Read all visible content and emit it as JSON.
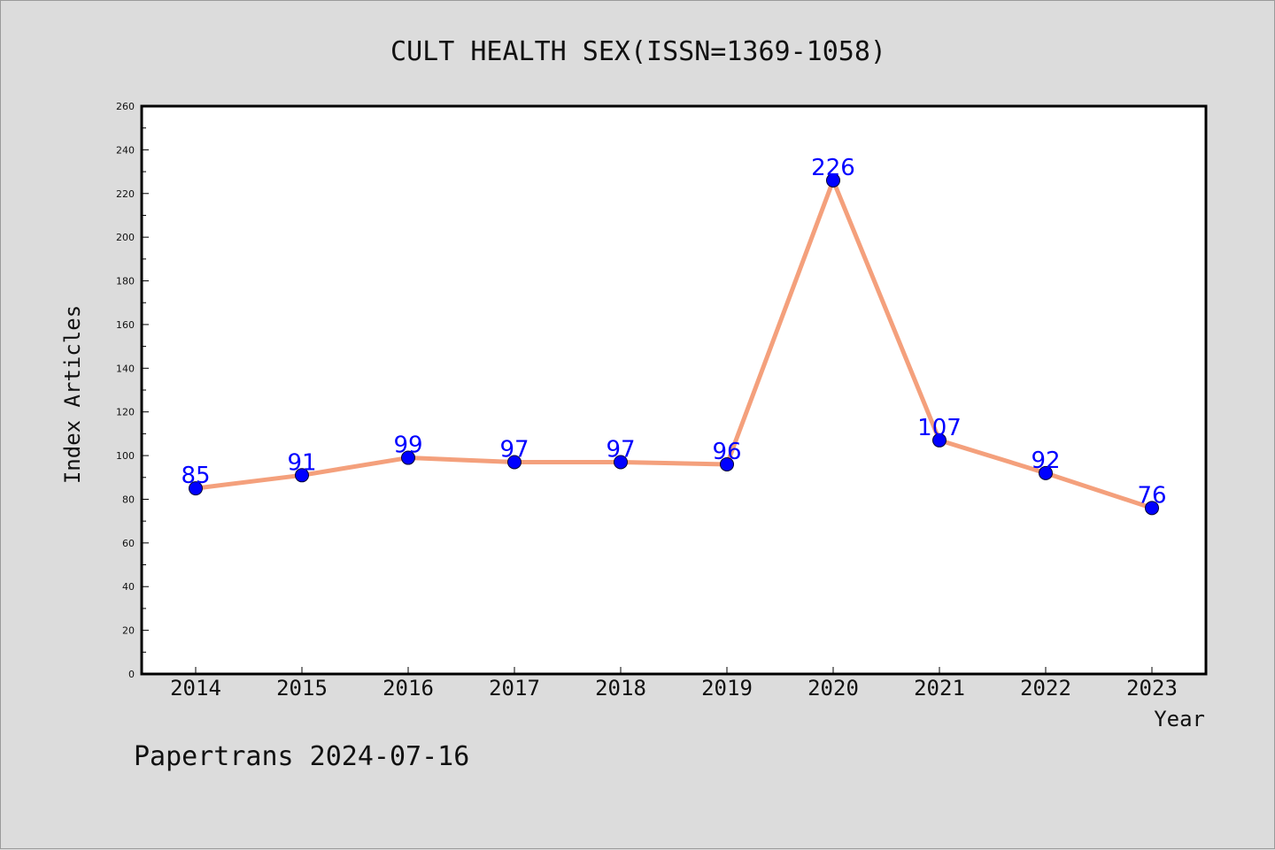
{
  "chart_data": {
    "type": "line",
    "title": "CULT HEALTH SEX(ISSN=1369-1058)",
    "xlabel": "Year",
    "ylabel": "Index Articles",
    "categories": [
      "2014",
      "2015",
      "2016",
      "2017",
      "2018",
      "2019",
      "2020",
      "2021",
      "2022",
      "2023"
    ],
    "series": [
      {
        "values": [
          85,
          91,
          99,
          97,
          97,
          96,
          226,
          107,
          92,
          76
        ],
        "line_color": "#f4a07c",
        "marker_color": "#0000ff"
      }
    ],
    "ylim": [
      0,
      260
    ],
    "y_ticks": [
      0,
      20,
      40,
      60,
      80,
      100,
      120,
      140,
      160,
      180,
      200,
      220,
      240,
      260
    ],
    "grid": false,
    "data_labels": true
  },
  "footer": {
    "text": "Papertrans 2024-07-16"
  },
  "colors": {
    "background": "#dcdcdc",
    "plot_background": "#ffffff",
    "data_label": "#0000ff"
  }
}
